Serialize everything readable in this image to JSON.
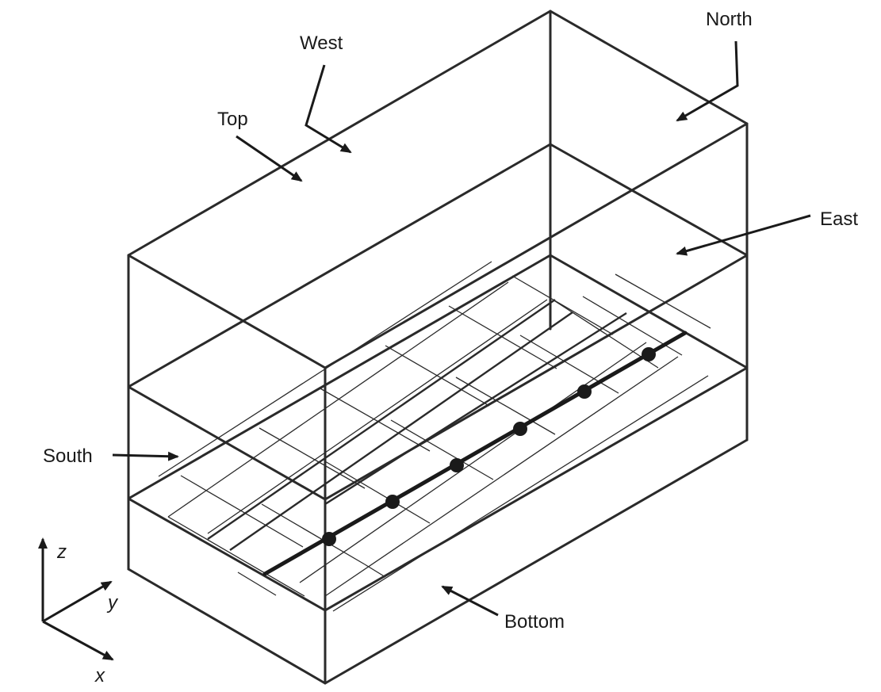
{
  "labels": {
    "west": "West",
    "north": "North",
    "top": "Top",
    "east": "East",
    "south": "South",
    "bottom": "Bottom"
  },
  "axes": {
    "z": "z",
    "y": "y",
    "x": "x"
  },
  "well_points_count": 6
}
